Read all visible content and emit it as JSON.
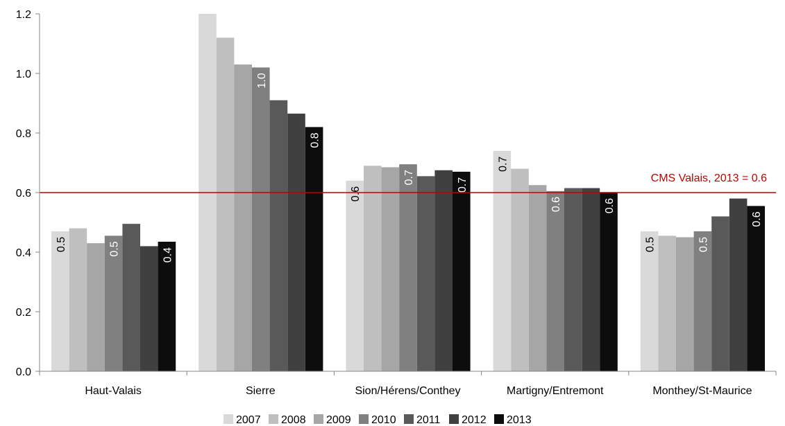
{
  "chart_data": {
    "type": "bar",
    "categories": [
      "Haut-Valais",
      "Sierre",
      "Sion/Hérens/Conthey",
      "Martigny/Entremont",
      "Monthey/St-Maurice"
    ],
    "ylim": [
      0,
      1.2
    ],
    "yticks": [
      "0.0",
      "0.2",
      "0.4",
      "0.6",
      "0.8",
      "1.0",
      "1.2"
    ],
    "series": [
      {
        "name": "2007",
        "color": "#d9d9d9",
        "values": [
          0.47,
          1.2,
          0.64,
          0.74,
          0.47
        ]
      },
      {
        "name": "2008",
        "color": "#bfbfbf",
        "values": [
          0.48,
          1.12,
          0.69,
          0.68,
          0.455
        ]
      },
      {
        "name": "2009",
        "color": "#a6a6a6",
        "values": [
          0.43,
          1.03,
          0.685,
          0.625,
          0.45
        ]
      },
      {
        "name": "2010",
        "color": "#808080",
        "values": [
          0.455,
          1.02,
          0.695,
          0.605,
          0.47
        ]
      },
      {
        "name": "2011",
        "color": "#595959",
        "values": [
          0.495,
          0.91,
          0.655,
          0.615,
          0.52
        ]
      },
      {
        "name": "2012",
        "color": "#404040",
        "values": [
          0.42,
          0.865,
          0.675,
          0.615,
          0.58
        ]
      },
      {
        "name": "2013",
        "color": "#0d0d0d",
        "values": [
          0.435,
          0.82,
          0.67,
          0.6,
          0.555
        ]
      }
    ],
    "data_labels": [
      {
        "series": 0,
        "category": 0,
        "text": "0.5"
      },
      {
        "series": 3,
        "category": 0,
        "text": "0.5"
      },
      {
        "series": 6,
        "category": 0,
        "text": "0.4"
      },
      {
        "series": 3,
        "category": 1,
        "text": "1.0"
      },
      {
        "series": 6,
        "category": 1,
        "text": "0.8"
      },
      {
        "series": 0,
        "category": 2,
        "text": "0.6"
      },
      {
        "series": 3,
        "category": 2,
        "text": "0.7"
      },
      {
        "series": 6,
        "category": 2,
        "text": "0.7"
      },
      {
        "series": 0,
        "category": 3,
        "text": "0.7"
      },
      {
        "series": 3,
        "category": 3,
        "text": "0.6"
      },
      {
        "series": 6,
        "category": 3,
        "text": "0.6"
      },
      {
        "series": 0,
        "category": 4,
        "text": "0.5"
      },
      {
        "series": 3,
        "category": 4,
        "text": "0.5"
      },
      {
        "series": 6,
        "category": 4,
        "text": "0.6"
      }
    ],
    "reference_line": {
      "value": 0.6,
      "label": "CMS Valais, 2013 = 0.6",
      "color": "#c00000"
    },
    "legend": "bottom",
    "grid": false
  }
}
